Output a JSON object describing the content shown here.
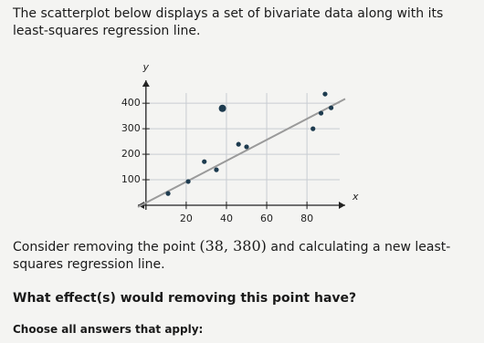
{
  "intro": "The scatterplot below displays a set of bivariate data along with its least-squares regression line.",
  "question": {
    "before": "Consider removing the point",
    "point": "(38, 380)",
    "after": "and calculating a new least-squares regression line."
  },
  "prompt": "What effect(s) would removing this point have?",
  "instruction": "Choose all answers that apply:",
  "chart_data": {
    "type": "scatter",
    "x_label": "x",
    "y_label": "y",
    "x": [
      11,
      21,
      29,
      35,
      46,
      50,
      83,
      87,
      89,
      92
    ],
    "y": [
      46,
      93,
      171,
      139,
      239,
      229,
      300,
      361,
      436,
      382
    ],
    "removed_point": {
      "x": 38,
      "y": 380
    },
    "regression_line": {
      "x": [
        -4,
        99
      ],
      "y": [
        -7,
        417
      ]
    },
    "color": "#1d3b4f",
    "line_color": "#9a9a9a",
    "xlim": [
      -4,
      99
    ],
    "ylim": [
      -18,
      490
    ],
    "xticks": [
      20,
      40,
      60,
      80
    ],
    "yticks": [
      100,
      200,
      300,
      400
    ],
    "grid": true
  }
}
